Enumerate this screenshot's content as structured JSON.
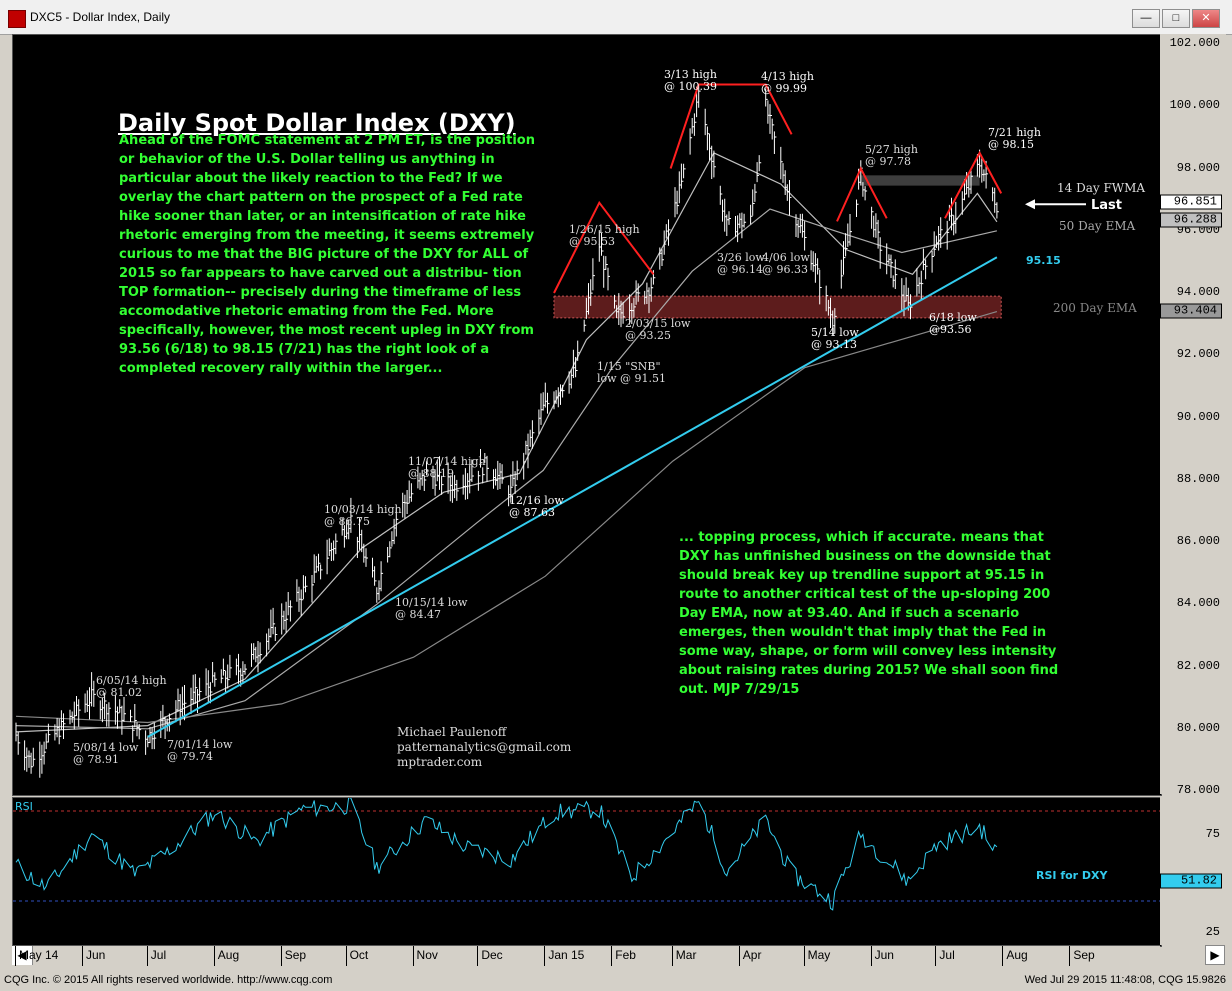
{
  "window": {
    "title": "DXC5 - Dollar Index, Daily",
    "buttons": [
      "—",
      "□",
      "✕"
    ]
  },
  "colors": {
    "background": "#000000",
    "price_bars": "#ffffff",
    "fwma": "#c0c0c0",
    "ema50": "#aaaaaa",
    "ema200": "#888888",
    "pattern_lines": "#ff2020",
    "trendline": "#33ccee",
    "commentary": "#33ff33",
    "zone": "#aa3333"
  },
  "headline": "Daily Spot Dollar Index (DXY)",
  "commentary_left": "Ahead of the FOMC statement at 2 PM ET, is the position or behavior of the U.S. Dollar telling us anything in particular about the likely reaction to the Fed? If we overlay the chart pattern on the prospect of a Fed rate hike sooner than later, or an intensification of rate hike rhetoric emerging from the meeting, it seems extremely curious to me that the BIG picture of the DXY for ALL of 2015 so far appears to have carved out a distribu- tion TOP formation-- precisely during the timeframe of less accomodative rhetoric emating from the Fed. More specifically, however, the most recent upleg in DXY from 93.56 (6/18) to 98.15 (7/21) has the right look of a completed recovery rally within the larger...",
  "commentary_right": "... topping process, which if accurate. means that DXY has unfinished business on the downside that should break key up trendline support at 95.15 in route to another critical test of the up-sloping 200 Day EMA, now at 93.40. And if such a scenario emerges, then wouldn't that imply that the Fed in some way, shape, or form will convey less intensity about raising rates during 2015? We shall soon find out.    MJP 7/29/15",
  "signature": {
    "name": "Michael Paulenoff",
    "email": "patternanalytics@gmail.com",
    "site": "mptrader.com"
  },
  "annotations": [
    {
      "id": "a1",
      "l1": "3/13 high",
      "l2": "@ 100.39"
    },
    {
      "id": "a2",
      "l1": "4/13 high",
      "l2": "@ 99.99"
    },
    {
      "id": "a3",
      "l1": "5/27 high",
      "l2": "@ 97.78"
    },
    {
      "id": "a4",
      "l1": "7/21 high",
      "l2": "@ 98.15"
    },
    {
      "id": "a5",
      "l1": "1/26/15 high",
      "l2": "@ 95.53"
    },
    {
      "id": "a6",
      "l1": "3/26 low",
      "l2": "@ 96.14"
    },
    {
      "id": "a7",
      "l1": "4/06 low",
      "l2": "@ 96.33"
    },
    {
      "id": "a8",
      "l1": "2/03/15 low",
      "l2": "@ 93.25"
    },
    {
      "id": "a9",
      "l1": "1/15 \"SNB\"",
      "l2": "low @ 91.51"
    },
    {
      "id": "a10",
      "l1": "5/14 low",
      "l2": "@ 93.13"
    },
    {
      "id": "a11",
      "l1": "6/18 low",
      "l2": "@93.56"
    },
    {
      "id": "a12",
      "l1": "11/07/14 high",
      "l2": "@ 88.19"
    },
    {
      "id": "a13",
      "l1": "12/16 low",
      "l2": "@ 87.63"
    },
    {
      "id": "a14",
      "l1": "10/03/14 high",
      "l2": "@ 86.75"
    },
    {
      "id": "a15",
      "l1": "10/15/14 low",
      "l2": "@ 84.47"
    },
    {
      "id": "a16",
      "l1": "6/05/14 high",
      "l2": "@ 81.02"
    },
    {
      "id": "a17",
      "l1": "5/08/14 low",
      "l2": "@ 78.91"
    },
    {
      "id": "a18",
      "l1": "7/01/14 low",
      "l2": "@ 79.74"
    }
  ],
  "labels": {
    "fwma": "14 Day FWMA",
    "ema50": "50 Day EMA",
    "ema200": "200 Day EMA",
    "last": "Last",
    "trend_value": "95.15",
    "rsi_title": "RSI",
    "rsi_label": "RSI for DXY"
  },
  "y_axis": {
    "ticks": [
      "102.000",
      "100.000",
      "98.000",
      "96.000",
      "94.000",
      "92.000",
      "90.000",
      "88.000",
      "86.000",
      "84.000",
      "82.000",
      "80.000",
      "78.000"
    ],
    "last_value": "96.851",
    "fwma_value": "96.288",
    "ema200_value": "93.404"
  },
  "rsi_axis": {
    "ticks": [
      "75",
      "25"
    ],
    "value": "51.82"
  },
  "x_axis": {
    "months": [
      "May 14",
      "Jun",
      "Jul",
      "Aug",
      "Sep",
      "Oct",
      "Nov",
      "Dec",
      "Jan 15",
      "Feb",
      "Mar",
      "Apr",
      "May",
      "Jun",
      "Jul",
      "Aug",
      "Sep"
    ]
  },
  "status": {
    "left": "CQG Inc. © 2015 All rights reserved worldwide. http://www.cqg.com",
    "right": "Wed Jul 29 2015 11:48:08, CQG 15.9826"
  },
  "chart_data": {
    "type": "line",
    "title": "Daily Spot Dollar Index (DXY)",
    "ylim": [
      78,
      102
    ],
    "rsi_ylim": [
      0,
      100
    ],
    "grid": false,
    "series": [
      {
        "name": "DXY",
        "x": [
          "2014-05-01",
          "2014-05-08",
          "2014-05-20",
          "2014-06-05",
          "2014-06-20",
          "2014-07-01",
          "2014-07-15",
          "2014-08-01",
          "2014-08-15",
          "2014-09-01",
          "2014-09-15",
          "2014-10-03",
          "2014-10-15",
          "2014-10-25",
          "2014-11-07",
          "2014-11-20",
          "2014-12-05",
          "2014-12-16",
          "2014-12-31",
          "2015-01-15",
          "2015-01-26",
          "2015-02-03",
          "2015-02-20",
          "2015-03-05",
          "2015-03-13",
          "2015-03-26",
          "2015-04-06",
          "2015-04-13",
          "2015-04-25",
          "2015-05-05",
          "2015-05-14",
          "2015-05-27",
          "2015-06-05",
          "2015-06-18",
          "2015-07-01",
          "2015-07-10",
          "2015-07-21",
          "2015-07-29"
        ],
        "values": [
          79.8,
          78.91,
          79.9,
          81.02,
          80.4,
          79.74,
          80.7,
          81.5,
          82.0,
          83.5,
          84.8,
          86.75,
          84.47,
          87.0,
          88.19,
          87.8,
          88.5,
          87.63,
          90.3,
          91.51,
          95.53,
          93.25,
          94.3,
          97.5,
          100.39,
          96.14,
          96.33,
          99.99,
          96.8,
          95.0,
          93.13,
          97.78,
          95.5,
          93.56,
          95.7,
          96.5,
          98.15,
          96.85
        ]
      },
      {
        "name": "14 Day FWMA",
        "x": [
          "2014-05-01",
          "2014-07-01",
          "2014-08-15",
          "2014-10-08",
          "2014-11-15",
          "2014-12-20",
          "2015-01-20",
          "2015-02-15",
          "2015-03-20",
          "2015-04-20",
          "2015-05-20",
          "2015-06-20",
          "2015-07-20",
          "2015-07-29"
        ],
        "values": [
          79.9,
          80.1,
          81.6,
          85.8,
          87.6,
          88.2,
          92.5,
          94.3,
          98.5,
          97.5,
          95.4,
          94.6,
          97.2,
          96.288
        ]
      },
      {
        "name": "50 Day EMA",
        "x": [
          "2014-05-01",
          "2014-07-01",
          "2014-08-15",
          "2014-10-15",
          "2014-11-30",
          "2014-12-31",
          "2015-02-01",
          "2015-03-10",
          "2015-04-15",
          "2015-05-15",
          "2015-06-15",
          "2015-07-29"
        ],
        "values": [
          80.1,
          80.0,
          80.9,
          84.0,
          86.6,
          88.3,
          91.6,
          94.7,
          96.7,
          96.0,
          95.3,
          96.0
        ]
      },
      {
        "name": "200 Day EMA",
        "x": [
          "2014-05-01",
          "2014-07-01",
          "2014-09-01",
          "2014-11-01",
          "2015-01-01",
          "2015-03-01",
          "2015-05-01",
          "2015-07-29"
        ],
        "values": [
          80.4,
          80.2,
          80.8,
          82.3,
          84.9,
          88.6,
          91.6,
          93.404
        ]
      },
      {
        "name": "RSI for DXY",
        "x": [
          "2014-05-01",
          "2014-05-15",
          "2014-06-05",
          "2014-06-25",
          "2014-07-10",
          "2014-08-01",
          "2014-08-20",
          "2014-09-10",
          "2014-10-03",
          "2014-10-15",
          "2014-11-07",
          "2014-11-25",
          "2014-12-16",
          "2015-01-05",
          "2015-01-26",
          "2015-02-10",
          "2015-03-13",
          "2015-03-26",
          "2015-04-13",
          "2015-04-25",
          "2015-05-14",
          "2015-05-27",
          "2015-06-18",
          "2015-07-01",
          "2015-07-21",
          "2015-07-29"
        ],
        "values": [
          45,
          32,
          62,
          40,
          52,
          74,
          58,
          76,
          78,
          44,
          70,
          55,
          48,
          74,
          76,
          38,
          80,
          42,
          70,
          40,
          25,
          62,
          36,
          56,
          66,
          51.82
        ]
      }
    ]
  }
}
